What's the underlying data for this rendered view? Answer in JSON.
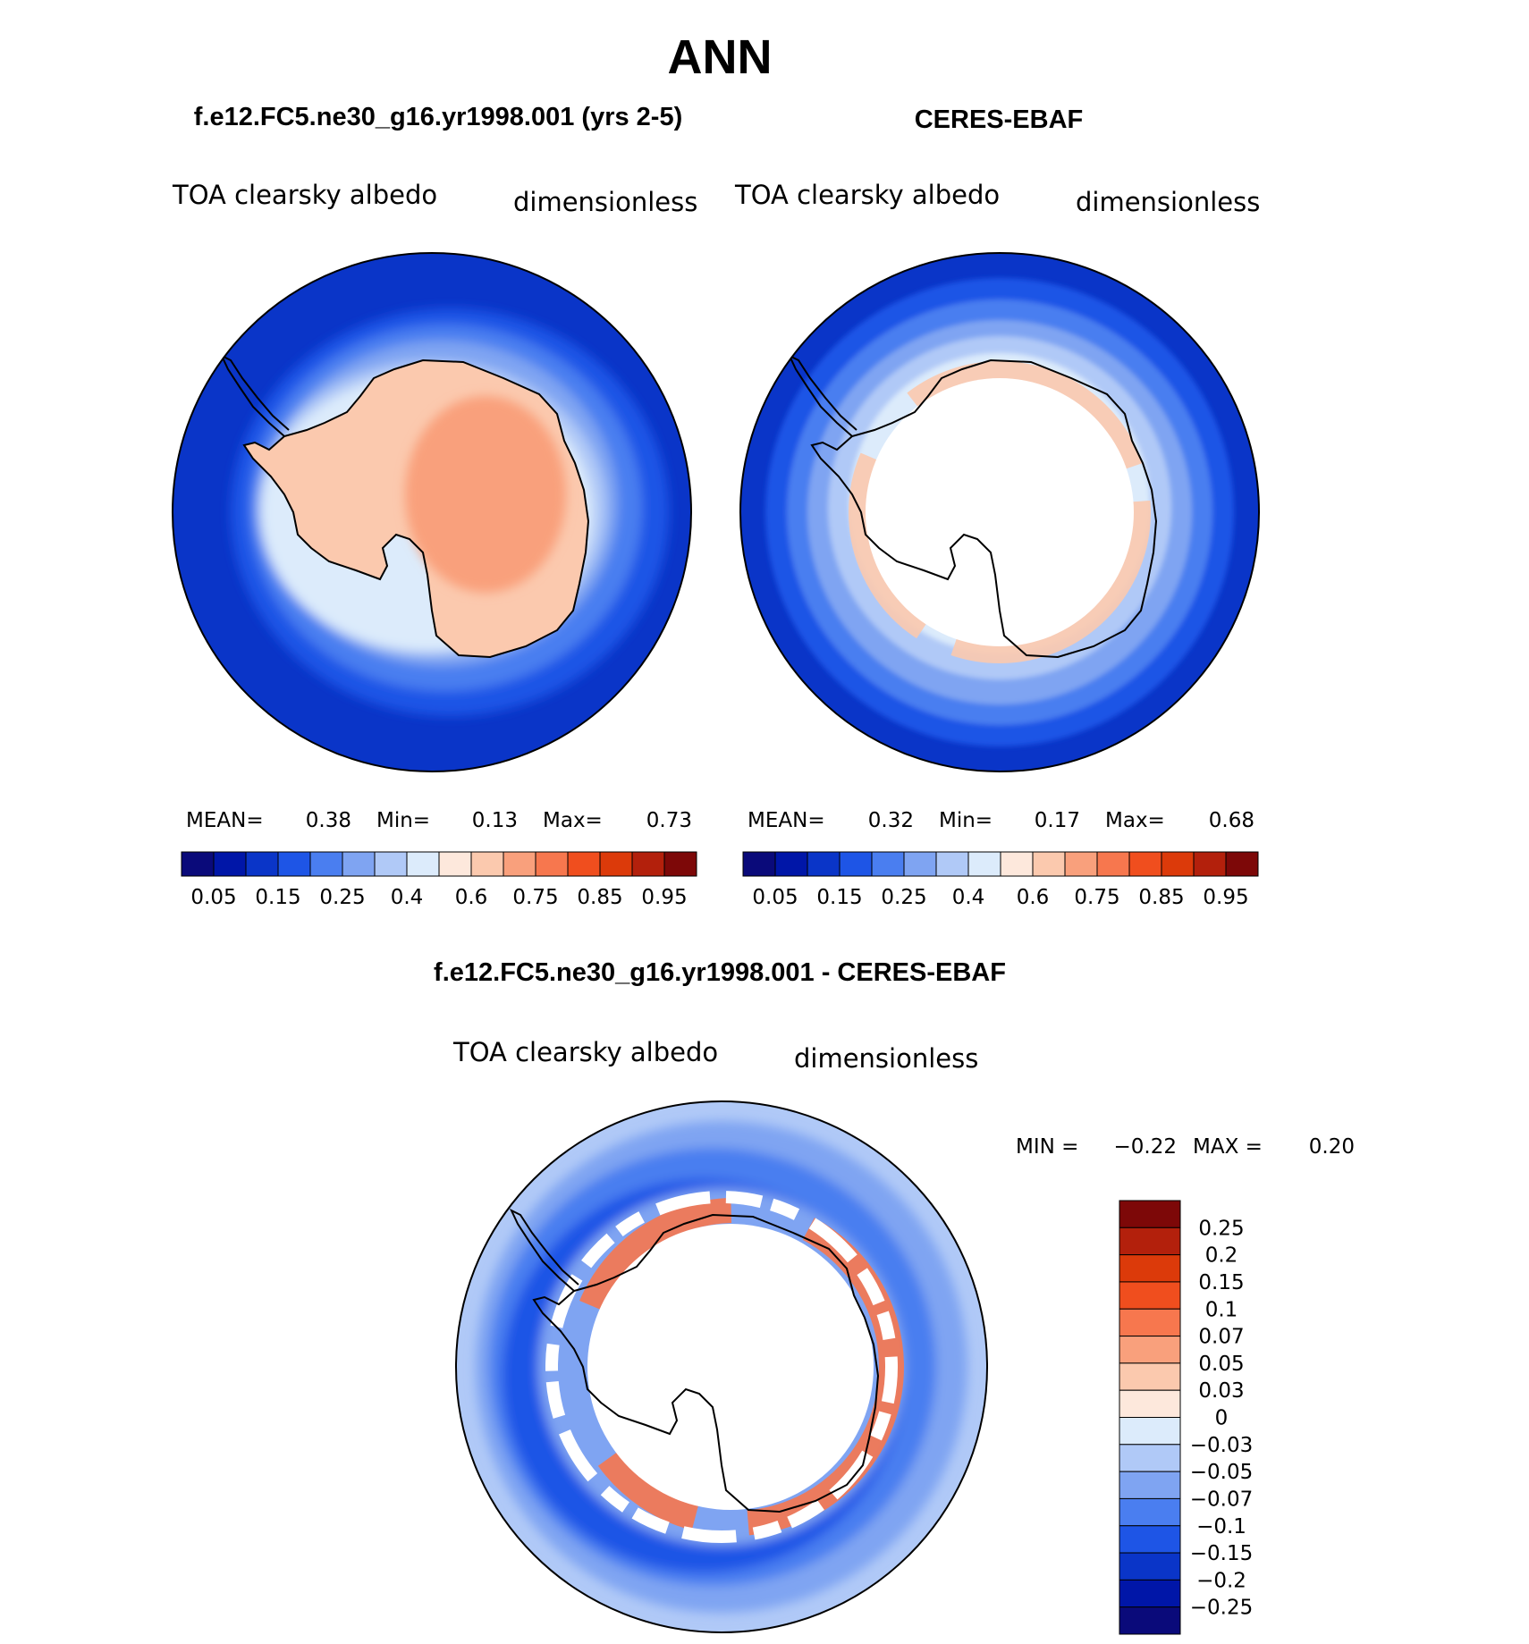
{
  "page_title": "ANN",
  "panels": [
    {
      "title": "f.e12.FC5.ne30_g16.yr1998.001 (yrs 2-5)",
      "variable": "TOA clearsky albedo",
      "units": "dimensionless",
      "stats": {
        "mean_label": "MEAN=",
        "mean": "0.38",
        "min_label": "Min=",
        "min": "0.13",
        "max_label": "Max=",
        "max": "0.73"
      }
    },
    {
      "title": "CERES-EBAF",
      "variable": "TOA clearsky albedo",
      "units": "dimensionless",
      "stats": {
        "mean_label": "MEAN=",
        "mean": "0.32",
        "min_label": "Min=",
        "min": "0.17",
        "max_label": "Max=",
        "max": "0.68"
      }
    }
  ],
  "abs_colorbar": {
    "colors": [
      "#0a0a7a",
      "#0016a8",
      "#0a35c8",
      "#1e55e6",
      "#4a7ef0",
      "#7fa4f2",
      "#b0c9f7",
      "#dcebfb",
      "#fde8dc",
      "#fbc9ae",
      "#f9a07c",
      "#f7774e",
      "#f04e1e",
      "#dc3a0a",
      "#b3200c",
      "#7d0808"
    ],
    "labels": [
      "0.05",
      "0.15",
      "0.25",
      "0.4",
      "0.6",
      "0.75",
      "0.85",
      "0.95"
    ]
  },
  "diff_panel": {
    "title": "f.e12.FC5.ne30_g16.yr1998.001 - CERES-EBAF",
    "variable": "TOA clearsky albedo",
    "units": "dimensionless",
    "stats": {
      "min_label": "MIN =",
      "min": "−0.22",
      "max_label": "MAX =",
      "max": "0.20"
    }
  },
  "diff_colorbar": {
    "colors": [
      "#7d0808",
      "#b3200c",
      "#dc3a0a",
      "#f04e1e",
      "#f7774e",
      "#f9a07c",
      "#fbc9ae",
      "#fde8dc",
      "#dcebfb",
      "#b0c9f7",
      "#7fa4f2",
      "#4a7ef0",
      "#1e55e6",
      "#0a35c8",
      "#0016a8",
      "#0a0a7a"
    ],
    "labels": [
      "0.25",
      "0.2",
      "0.15",
      "0.1",
      "0.07",
      "0.05",
      "0.03",
      "0",
      "−0.03",
      "−0.05",
      "−0.07",
      "−0.1",
      "−0.15",
      "−0.2",
      "−0.25"
    ]
  }
}
